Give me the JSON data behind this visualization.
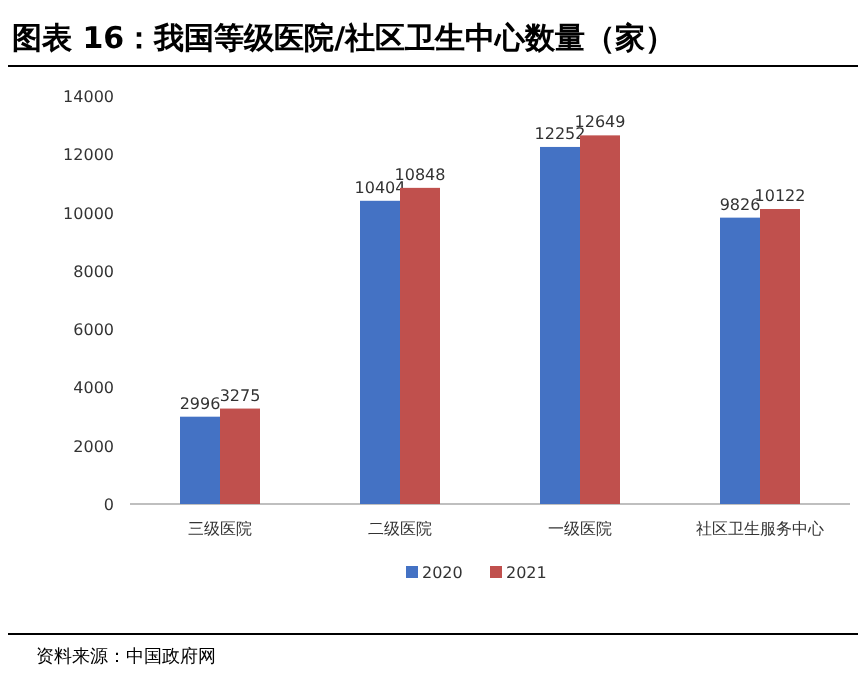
{
  "chart_data": {
    "type": "bar",
    "title": "图表 16：我国等级医院/社区卫生中心数量（家）",
    "categories": [
      "三级医院",
      "二级医院",
      "一级医院",
      "社区卫生服务中心"
    ],
    "series": [
      {
        "name": "2020",
        "color": "#4472c4",
        "values": [
          2996,
          10404,
          12252,
          9826
        ]
      },
      {
        "name": "2021",
        "color": "#c0504d",
        "values": [
          3275,
          10848,
          12649,
          10122
        ]
      }
    ],
    "ylim": [
      0,
      14000
    ],
    "yticks": [
      0,
      2000,
      4000,
      6000,
      8000,
      10000,
      12000,
      14000
    ],
    "data_labels": true,
    "legend": "bottom",
    "grid": false,
    "annotations": [
      "资料来源：中国政府网"
    ]
  }
}
